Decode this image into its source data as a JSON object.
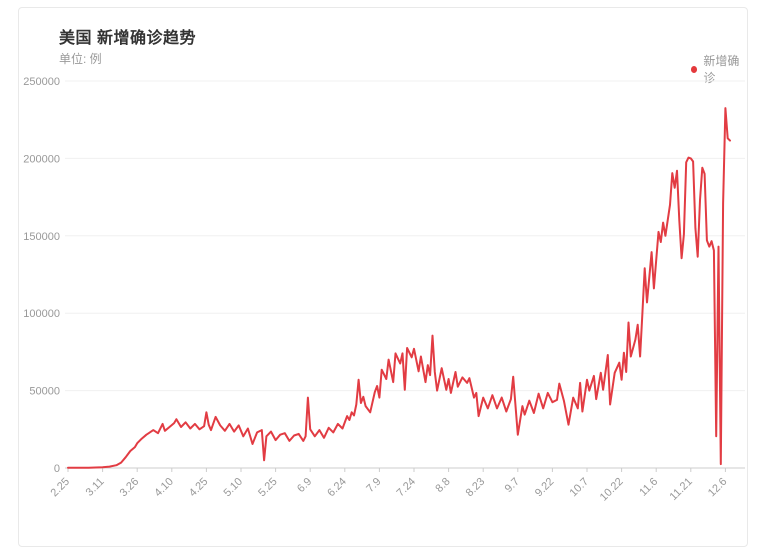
{
  "card": {
    "title": "美国 新增确诊趋势",
    "subtitle": "单位: 例",
    "legend": {
      "label": "新增确诊",
      "marker_color": "#e4393c"
    }
  },
  "colors": {
    "series_red": "#e23c43",
    "title_text": "#333333",
    "muted_text": "#999999",
    "gridline": "#f0f0f0",
    "axis_line": "#cccccc",
    "card_border": "#e9e9e9"
  },
  "chart_data": {
    "type": "line",
    "title": "美国 新增确诊趋势",
    "unit_label": "单位: 例",
    "legend_position": "top-right",
    "grid": true,
    "ylabel": "",
    "xlabel": "",
    "ylim": [
      0,
      250000
    ],
    "y_ticks": [
      0,
      50000,
      100000,
      150000,
      200000,
      250000
    ],
    "y_tick_labels": [
      "0",
      "50000",
      "100000",
      "150000",
      "200000",
      "250000"
    ],
    "x_tick_labels": [
      "2.25",
      "3.11",
      "3.26",
      "4.10",
      "4.25",
      "5.10",
      "5.25",
      "6.9",
      "6.24",
      "7.9",
      "7.24",
      "8.8",
      "8.23",
      "9.7",
      "9.22",
      "10.7",
      "10.22",
      "11.6",
      "11.21",
      "12.6"
    ],
    "x_tick_days": [
      0,
      15,
      30,
      45,
      60,
      75,
      90,
      105,
      120,
      135,
      150,
      165,
      180,
      195,
      210,
      225,
      240,
      255,
      270,
      285
    ],
    "x_domain_days": [
      0,
      287
    ],
    "x_axis_note": "daily data, day 0 = 2.25, day 287 = 12.8",
    "series": [
      {
        "name": "新增确诊",
        "color": "#e23c43",
        "points": [
          [
            0,
            100
          ],
          [
            3,
            100
          ],
          [
            6,
            150
          ],
          [
            9,
            200
          ],
          [
            12,
            300
          ],
          [
            15,
            500
          ],
          [
            18,
            900
          ],
          [
            21,
            1800
          ],
          [
            23,
            3500
          ],
          [
            25,
            7000
          ],
          [
            27,
            11000
          ],
          [
            29,
            13500
          ],
          [
            30,
            16000
          ],
          [
            32,
            19000
          ],
          [
            34,
            21500
          ],
          [
            35,
            22500
          ],
          [
            37,
            24500
          ],
          [
            39,
            22500
          ],
          [
            41,
            28500
          ],
          [
            42,
            24000
          ],
          [
            44,
            26500
          ],
          [
            46,
            29000
          ],
          [
            47,
            31500
          ],
          [
            49,
            26500
          ],
          [
            51,
            29500
          ],
          [
            53,
            25500
          ],
          [
            55,
            28500
          ],
          [
            57,
            25000
          ],
          [
            59,
            27000
          ],
          [
            60,
            36000
          ],
          [
            61,
            28000
          ],
          [
            62,
            24500
          ],
          [
            64,
            33000
          ],
          [
            66,
            27500
          ],
          [
            68,
            24000
          ],
          [
            70,
            28500
          ],
          [
            72,
            23500
          ],
          [
            74,
            27500
          ],
          [
            76,
            20500
          ],
          [
            78,
            25500
          ],
          [
            80,
            15500
          ],
          [
            82,
            23000
          ],
          [
            84,
            24500
          ],
          [
            85,
            5000
          ],
          [
            86,
            20500
          ],
          [
            88,
            23500
          ],
          [
            90,
            18000
          ],
          [
            92,
            21500
          ],
          [
            94,
            22500
          ],
          [
            96,
            17500
          ],
          [
            98,
            21000
          ],
          [
            100,
            22000
          ],
          [
            102,
            17500
          ],
          [
            103,
            20500
          ],
          [
            104,
            45500
          ],
          [
            105,
            25000
          ],
          [
            107,
            20500
          ],
          [
            109,
            24500
          ],
          [
            111,
            19500
          ],
          [
            113,
            26000
          ],
          [
            115,
            23000
          ],
          [
            117,
            28500
          ],
          [
            119,
            25500
          ],
          [
            121,
            33500
          ],
          [
            122,
            31000
          ],
          [
            123,
            36000
          ],
          [
            124,
            34000
          ],
          [
            125,
            41000
          ],
          [
            126,
            57000
          ],
          [
            127,
            42000
          ],
          [
            128,
            46000
          ],
          [
            129,
            40000
          ],
          [
            131,
            36000
          ],
          [
            133,
            49000
          ],
          [
            134,
            53000
          ],
          [
            135,
            45500
          ],
          [
            136,
            63500
          ],
          [
            138,
            57500
          ],
          [
            139,
            70000
          ],
          [
            141,
            55500
          ],
          [
            142,
            74000
          ],
          [
            144,
            67500
          ],
          [
            145,
            74000
          ],
          [
            146,
            50500
          ],
          [
            147,
            77500
          ],
          [
            149,
            71500
          ],
          [
            150,
            77000
          ],
          [
            152,
            62500
          ],
          [
            153,
            72000
          ],
          [
            155,
            55500
          ],
          [
            156,
            66500
          ],
          [
            157,
            60000
          ],
          [
            158,
            85500
          ],
          [
            159,
            62000
          ],
          [
            160,
            50000
          ],
          [
            162,
            64500
          ],
          [
            164,
            50500
          ],
          [
            165,
            57500
          ],
          [
            166,
            48500
          ],
          [
            168,
            62000
          ],
          [
            169,
            52500
          ],
          [
            171,
            58500
          ],
          [
            173,
            55000
          ],
          [
            174,
            58000
          ],
          [
            176,
            45500
          ],
          [
            177,
            48500
          ],
          [
            178,
            33500
          ],
          [
            180,
            45500
          ],
          [
            182,
            38500
          ],
          [
            184,
            47000
          ],
          [
            186,
            38500
          ],
          [
            188,
            45500
          ],
          [
            190,
            36500
          ],
          [
            192,
            44500
          ],
          [
            193,
            59000
          ],
          [
            195,
            21500
          ],
          [
            197,
            40000
          ],
          [
            198,
            34500
          ],
          [
            200,
            43500
          ],
          [
            202,
            35500
          ],
          [
            204,
            48000
          ],
          [
            206,
            38500
          ],
          [
            208,
            48500
          ],
          [
            210,
            42500
          ],
          [
            212,
            44000
          ],
          [
            213,
            54500
          ],
          [
            215,
            43500
          ],
          [
            217,
            28000
          ],
          [
            219,
            45500
          ],
          [
            221,
            38500
          ],
          [
            222,
            55000
          ],
          [
            223,
            36500
          ],
          [
            225,
            57000
          ],
          [
            226,
            50000
          ],
          [
            228,
            59500
          ],
          [
            229,
            44500
          ],
          [
            231,
            61500
          ],
          [
            232,
            50500
          ],
          [
            234,
            73000
          ],
          [
            235,
            41000
          ],
          [
            237,
            61500
          ],
          [
            239,
            68000
          ],
          [
            240,
            57000
          ],
          [
            241,
            74500
          ],
          [
            242,
            62000
          ],
          [
            243,
            94000
          ],
          [
            244,
            72000
          ],
          [
            246,
            83000
          ],
          [
            247,
            92500
          ],
          [
            248,
            72000
          ],
          [
            249,
            100000
          ],
          [
            250,
            129000
          ],
          [
            251,
            107000
          ],
          [
            253,
            139500
          ],
          [
            254,
            116000
          ],
          [
            256,
            152500
          ],
          [
            257,
            146000
          ],
          [
            258,
            158500
          ],
          [
            259,
            150000
          ],
          [
            261,
            170000
          ],
          [
            262,
            190500
          ],
          [
            263,
            181000
          ],
          [
            264,
            192000
          ],
          [
            265,
            160000
          ],
          [
            266,
            135500
          ],
          [
            267,
            151000
          ],
          [
            268,
            197500
          ],
          [
            269,
            200500
          ],
          [
            270,
            200000
          ],
          [
            271,
            198000
          ],
          [
            272,
            155000
          ],
          [
            273,
            136500
          ],
          [
            274,
            173000
          ],
          [
            275,
            194000
          ],
          [
            276,
            190000
          ],
          [
            277,
            147000
          ],
          [
            278,
            143000
          ],
          [
            279,
            146500
          ],
          [
            280,
            140500
          ],
          [
            281,
            20500
          ],
          [
            282,
            143000
          ],
          [
            283,
            2500
          ],
          [
            284,
            171000
          ],
          [
            285,
            232500
          ],
          [
            286,
            213000
          ],
          [
            287,
            211500
          ]
        ]
      }
    ]
  }
}
